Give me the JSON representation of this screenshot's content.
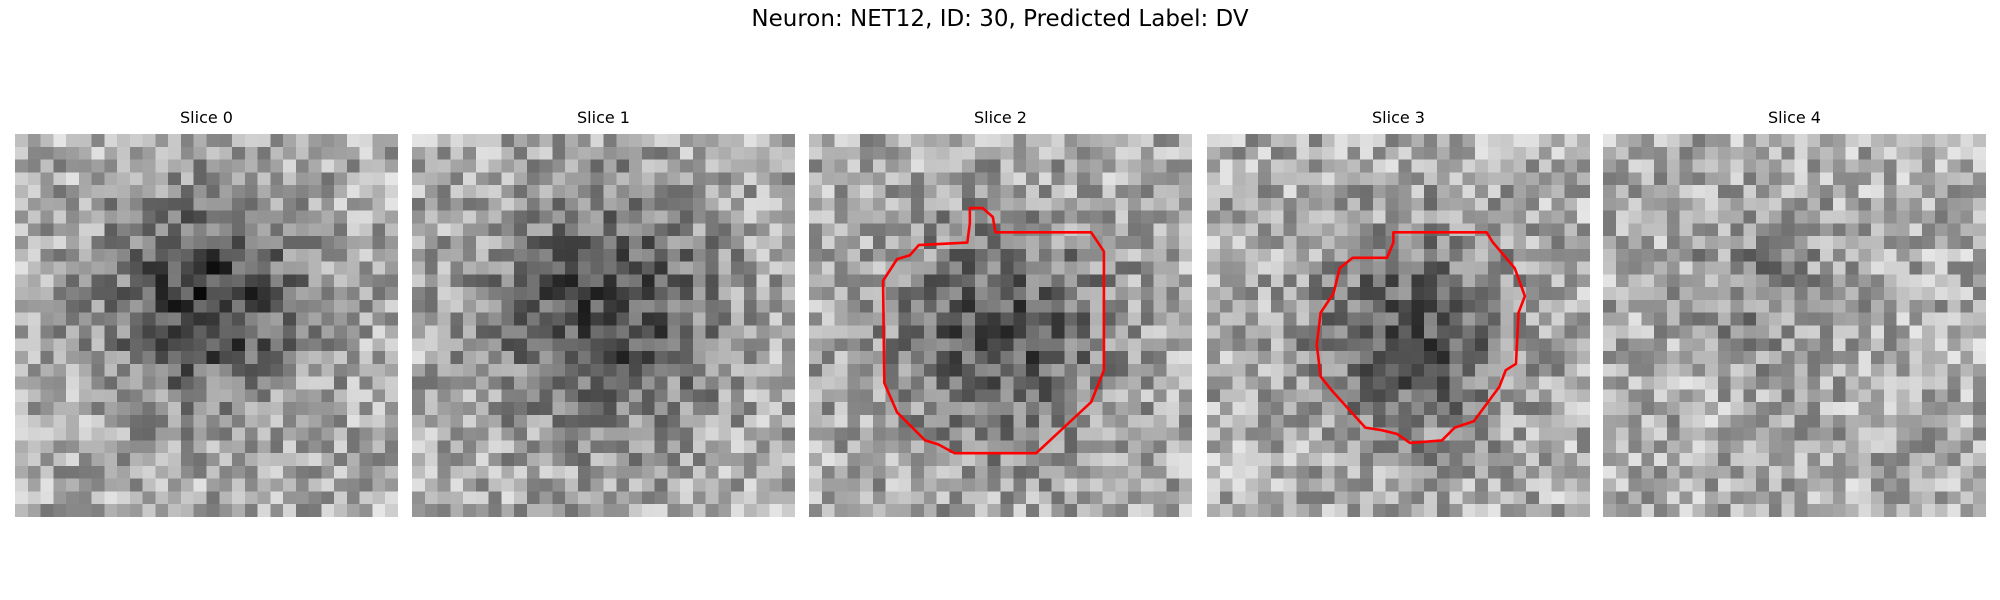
{
  "title": "Neuron: NET12, ID: 30, Predicted Label: DV",
  "panels": [
    {
      "title": "Slice 0"
    },
    {
      "title": "Slice 1"
    },
    {
      "title": "Slice 2"
    },
    {
      "title": "Slice 3"
    },
    {
      "title": "Slice 4"
    }
  ]
}
